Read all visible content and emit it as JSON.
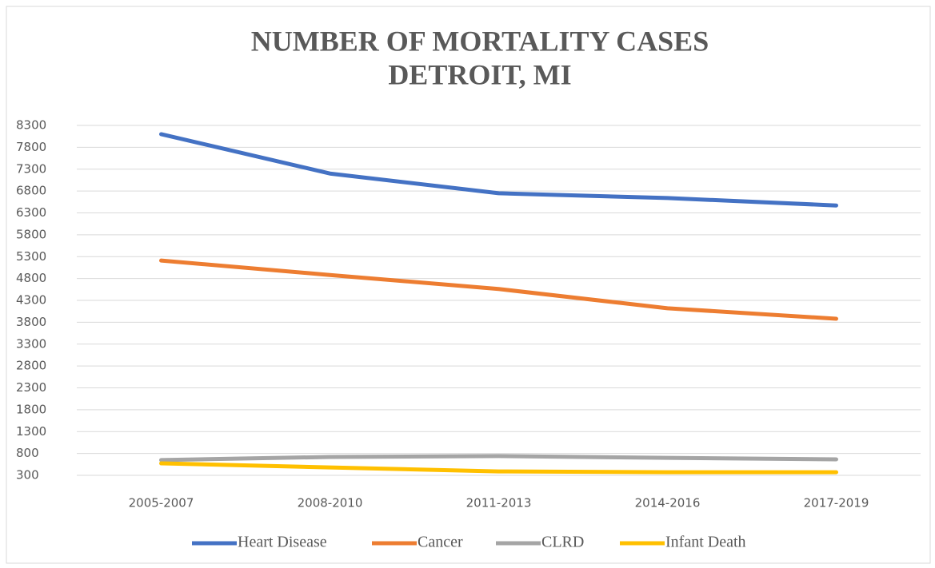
{
  "chart_data": {
    "type": "line",
    "title": "NUMBER OF MORTALITY CASES",
    "subtitle": "DETROIT, MI",
    "categories": [
      "2005-2007",
      "2008-2010",
      "2011-2013",
      "2014-2016",
      "2017-2019"
    ],
    "series": [
      {
        "name": "Heart Disease",
        "color": "#4472c4",
        "values": [
          8100,
          7200,
          6750,
          6640,
          6470
        ]
      },
      {
        "name": "Cancer",
        "color": "#ed7d31",
        "values": [
          5210,
          4880,
          4560,
          4120,
          3880
        ]
      },
      {
        "name": "CLRD",
        "color": "#a5a5a5",
        "values": [
          650,
          720,
          740,
          700,
          665
        ]
      },
      {
        "name": "Infant Death",
        "color": "#ffc000",
        "values": [
          574,
          480,
          390,
          370,
          370
        ]
      }
    ],
    "ylim": [
      300,
      8300
    ],
    "yticks": [
      300,
      800,
      1300,
      1800,
      2300,
      2800,
      3300,
      3800,
      4300,
      4800,
      5300,
      5800,
      6300,
      6800,
      7300,
      7800,
      8300
    ],
    "grid": true,
    "legend": "bottom"
  }
}
